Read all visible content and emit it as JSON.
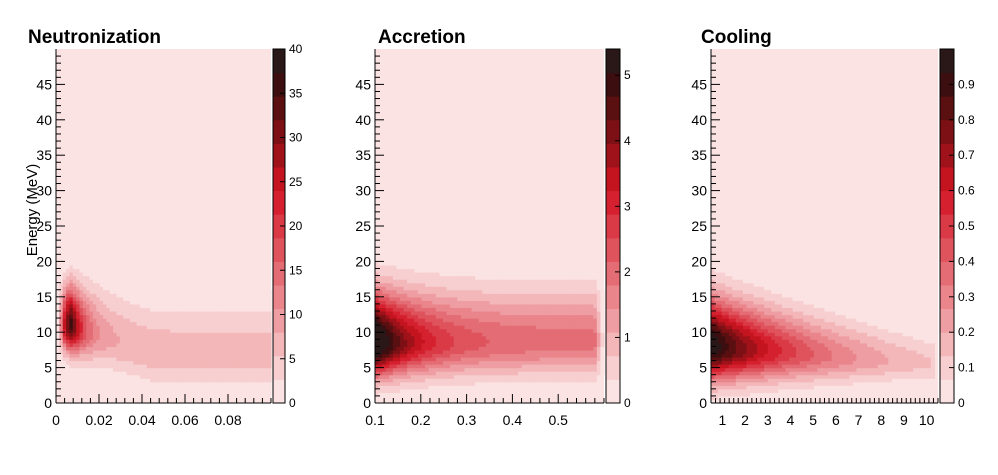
{
  "chart_data": [
    {
      "type": "heatmap",
      "title": "Neutronization",
      "xlabel": "",
      "ylabel": "Energy (MeV)",
      "xlim": [
        0,
        0.1
      ],
      "ylim": [
        0,
        50
      ],
      "xticks": [
        0,
        0.02,
        0.04,
        0.06,
        0.08
      ],
      "xtick_labels": [
        "0",
        "0.02",
        "0.04",
        "0.06",
        "0.08"
      ],
      "yticks": [
        0,
        5,
        10,
        15,
        20,
        25,
        30,
        35,
        40,
        45
      ],
      "ytick_labels": [
        "0",
        "5",
        "10",
        "15",
        "20",
        "25",
        "30",
        "35",
        "40",
        "45"
      ],
      "zlim": [
        0,
        40
      ],
      "zticks": [
        0,
        5,
        10,
        15,
        20,
        25,
        30,
        35,
        40
      ],
      "ztick_labels": [
        "0",
        "5",
        "10",
        "15",
        "20",
        "25",
        "30",
        "35",
        "40"
      ],
      "peak": {
        "x": 0.007,
        "y": 11,
        "z": 40
      },
      "description_values": {
        "x_edge_right": 0.098
      }
    },
    {
      "type": "heatmap",
      "title": "Accretion",
      "xlabel": "",
      "ylabel": "",
      "xlim": [
        0.1,
        0.6
      ],
      "ylim": [
        0,
        50
      ],
      "xticks": [
        0.1,
        0.2,
        0.3,
        0.4,
        0.5
      ],
      "xtick_labels": [
        "0.1",
        "0.2",
        "0.3",
        "0.4",
        "0.5"
      ],
      "yticks": [
        0,
        5,
        10,
        15,
        20,
        25,
        30,
        35,
        40,
        45
      ],
      "ytick_labels": [
        "0",
        "5",
        "10",
        "15",
        "20",
        "25",
        "30",
        "35",
        "40",
        "45"
      ],
      "zlim": [
        0,
        5.4
      ],
      "zticks": [
        0,
        1,
        2,
        3,
        4,
        5
      ],
      "ztick_labels": [
        "0",
        "1",
        "2",
        "3",
        "4",
        "5"
      ],
      "peak": {
        "x": 0.12,
        "y": 8.5,
        "z": 5.4
      },
      "description_values": {
        "x_edge_right": 0.59
      }
    },
    {
      "type": "heatmap",
      "title": "Cooling",
      "xlabel": "",
      "ylabel": "",
      "xlim": [
        0.5,
        10.5
      ],
      "ylim": [
        0,
        50
      ],
      "xticks": [
        1,
        2,
        3,
        4,
        5,
        6,
        7,
        8,
        9,
        10
      ],
      "xtick_labels": [
        "1",
        "2",
        "3",
        "4",
        "5",
        "6",
        "7",
        "8",
        "9",
        "10"
      ],
      "yticks": [
        0,
        5,
        10,
        15,
        20,
        25,
        30,
        35,
        40,
        45
      ],
      "ytick_labels": [
        "0",
        "5",
        "10",
        "15",
        "20",
        "25",
        "30",
        "35",
        "40",
        "45"
      ],
      "zlim": [
        0,
        1.0
      ],
      "zticks": [
        0,
        0.1,
        0.2,
        0.3,
        0.4,
        0.5,
        0.6,
        0.7,
        0.8,
        0.9
      ],
      "ztick_labels": [
        "0",
        "0.1",
        "0.2",
        "0.3",
        "0.4",
        "0.5",
        "0.6",
        "0.7",
        "0.8",
        "0.9"
      ],
      "peak": {
        "x": 0.6,
        "y": 8,
        "z": 1.0
      },
      "description_values": {
        "x_edge_right": 10.5
      }
    }
  ],
  "colors": {
    "palette": [
      "#fbe3e3",
      "#f7cfd0",
      "#f3b7b9",
      "#ee9ea2",
      "#e9858b",
      "#e46c74",
      "#df535d",
      "#da3a46",
      "#d5212f",
      "#c4141f",
      "#a01219",
      "#7c1014",
      "#5a0f10",
      "#3d0e0f",
      "#2a1818"
    ],
    "background": "#ffffff",
    "axis": "#000000"
  }
}
